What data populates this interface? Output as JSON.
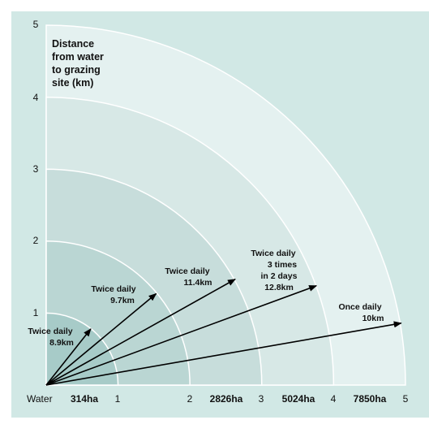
{
  "colors": {
    "panel": "#d1e8e5",
    "band_1": "#a7cbc8",
    "band_2": "#bad6d3",
    "band_3": "#c7dddb",
    "band_4": "#d7e8e6",
    "band_5": "#e4f1f0",
    "outline": "#ffffff",
    "arrow": "#000000"
  },
  "y_axis": {
    "label_lines": [
      "Distance",
      "from water",
      "to grazing",
      "site (km)"
    ],
    "ticks": [
      "1",
      "2",
      "3",
      "4",
      "5"
    ]
  },
  "x_axis": {
    "origin_label": "Water",
    "ticks": [
      "1",
      "2",
      "3",
      "4",
      "5"
    ],
    "area_labels": [
      "314ha",
      "2826ha",
      "5024ha",
      "7850ha"
    ]
  },
  "chart_data": {
    "type": "diagram",
    "radii_km": [
      1,
      2,
      3,
      4,
      5
    ],
    "areas": [
      {
        "radius_km": 1,
        "label": "314ha"
      },
      {
        "radius_km": 3,
        "label": "2826ha"
      },
      {
        "radius_km": 4,
        "label": "5024ha"
      },
      {
        "radius_km": 5,
        "label": "7850ha"
      }
    ],
    "trips": [
      {
        "lines": [
          "Twice daily",
          "8.9km"
        ],
        "end_km": [
          0.62,
          0.78
        ]
      },
      {
        "lines": [
          "Twice daily",
          "9.7km"
        ],
        "end_km": [
          1.53,
          1.27
        ]
      },
      {
        "lines": [
          "Twice daily",
          "11.4km"
        ],
        "end_km": [
          2.63,
          1.47
        ]
      },
      {
        "lines": [
          "Twice daily",
          "3 times",
          "in 2 days",
          "12.8km"
        ],
        "end_km": [
          3.76,
          1.38
        ]
      },
      {
        "lines": [
          "Once daily",
          "10km"
        ],
        "end_km": [
          4.94,
          0.86
        ]
      }
    ]
  }
}
